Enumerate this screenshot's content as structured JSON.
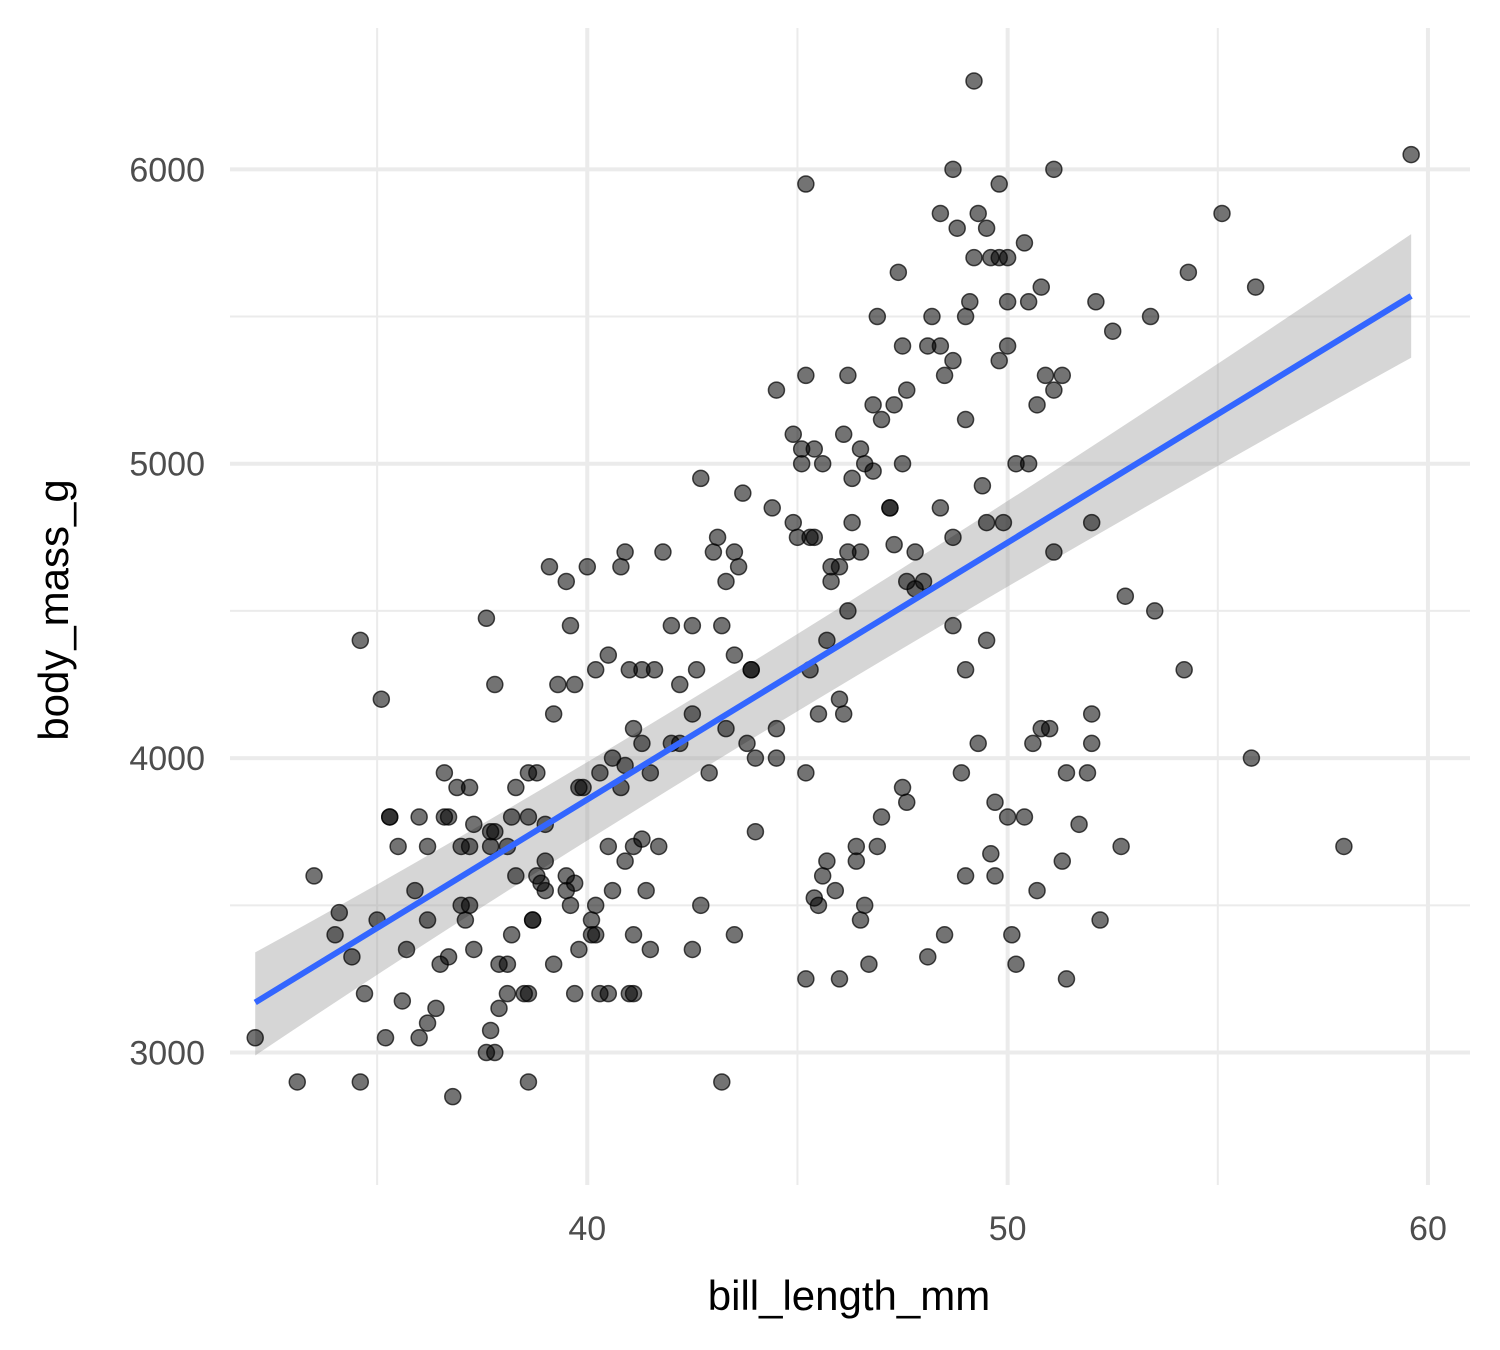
{
  "chart_data": {
    "type": "scatter",
    "xlabel": "bill_length_mm",
    "ylabel": "body_mass_g",
    "xlim": [
      31.5,
      61.0
    ],
    "ylim": [
      2550,
      6480
    ],
    "x_ticks": [
      40,
      50,
      60
    ],
    "y_ticks": [
      3000,
      4000,
      5000,
      6000
    ],
    "x_minor": [
      35,
      45,
      55
    ],
    "y_minor": [
      3500,
      4500,
      5500
    ],
    "grid": true,
    "point_color": "#000000",
    "point_opacity": 0.55,
    "trend_line": {
      "method": "lm",
      "color": "#3366ff",
      "ribbon_color": "#999999",
      "start": [
        32.1,
        3170
      ],
      "end": [
        59.6,
        5570
      ],
      "ci_start": [
        2990,
        3340
      ],
      "ci_mid_x": 44.0,
      "ci_mid": [
        4130,
        4270
      ],
      "ci_end": [
        5360,
        5780
      ]
    },
    "points": [
      [
        32.1,
        3050
      ],
      [
        33.1,
        2900
      ],
      [
        33.5,
        3600
      ],
      [
        34.0,
        3400
      ],
      [
        34.1,
        3475
      ],
      [
        34.4,
        3325
      ],
      [
        34.6,
        2900
      ],
      [
        34.6,
        4400
      ],
      [
        34.7,
        3200
      ],
      [
        35.0,
        3450
      ],
      [
        35.1,
        4200
      ],
      [
        35.2,
        3050
      ],
      [
        35.3,
        3800
      ],
      [
        35.5,
        3700
      ],
      [
        35.6,
        3175
      ],
      [
        35.7,
        3350
      ],
      [
        35.9,
        3550
      ],
      [
        36.0,
        3050
      ],
      [
        36.2,
        3100
      ],
      [
        36.2,
        3700
      ],
      [
        36.2,
        3450
      ],
      [
        36.4,
        3150
      ],
      [
        36.5,
        3300
      ],
      [
        36.6,
        3800
      ],
      [
        36.7,
        3325
      ],
      [
        36.8,
        2850
      ],
      [
        37.0,
        3500
      ],
      [
        37.0,
        3700
      ],
      [
        37.1,
        3450
      ],
      [
        37.2,
        3500
      ],
      [
        37.3,
        3350
      ],
      [
        37.6,
        3000
      ],
      [
        37.7,
        3700
      ],
      [
        37.8,
        3750
      ],
      [
        37.8,
        3000
      ],
      [
        37.9,
        3150
      ],
      [
        38.1,
        3300
      ],
      [
        38.1,
        3700
      ],
      [
        38.2,
        3400
      ],
      [
        38.3,
        3600
      ],
      [
        38.5,
        3200
      ],
      [
        38.6,
        3200
      ],
      [
        38.6,
        2900
      ],
      [
        38.7,
        3450
      ],
      [
        38.8,
        3600
      ],
      [
        39.0,
        3550
      ],
      [
        39.2,
        3300
      ],
      [
        39.5,
        3550
      ],
      [
        39.7,
        3200
      ],
      [
        39.8,
        3350
      ],
      [
        40.1,
        3450
      ],
      [
        40.2,
        3400
      ],
      [
        40.3,
        3200
      ],
      [
        40.5,
        3200
      ],
      [
        40.9,
        3650
      ],
      [
        41.1,
        3400
      ],
      [
        41.1,
        3200
      ],
      [
        41.4,
        3550
      ],
      [
        41.5,
        3350
      ],
      [
        42.5,
        3350
      ],
      [
        42.7,
        3500
      ],
      [
        43.2,
        2900
      ],
      [
        43.5,
        3400
      ],
      [
        44.0,
        3750
      ],
      [
        36.6,
        3950
      ],
      [
        37.2,
        3900
      ],
      [
        37.6,
        4475
      ],
      [
        37.8,
        4250
      ],
      [
        38.2,
        3800
      ],
      [
        38.6,
        3950
      ],
      [
        38.8,
        3950
      ],
      [
        39.1,
        4650
      ],
      [
        39.2,
        4150
      ],
      [
        39.3,
        4250
      ],
      [
        39.5,
        4600
      ],
      [
        39.6,
        4450
      ],
      [
        39.7,
        4250
      ],
      [
        40.0,
        4650
      ],
      [
        40.2,
        4300
      ],
      [
        40.5,
        4350
      ],
      [
        40.8,
        4650
      ],
      [
        40.9,
        4700
      ],
      [
        41.0,
        4300
      ],
      [
        41.1,
        4100
      ],
      [
        41.3,
        4300
      ],
      [
        41.6,
        4300
      ],
      [
        41.8,
        4700
      ],
      [
        42.0,
        4450
      ],
      [
        42.5,
        4450
      ],
      [
        42.7,
        4950
      ],
      [
        43.0,
        4700
      ],
      [
        43.1,
        4750
      ],
      [
        43.2,
        4450
      ],
      [
        43.3,
        4600
      ],
      [
        43.5,
        4700
      ],
      [
        43.6,
        4650
      ],
      [
        43.5,
        4350
      ],
      [
        43.7,
        4900
      ],
      [
        43.9,
        4300
      ],
      [
        44.4,
        4850
      ],
      [
        44.9,
        5100
      ],
      [
        45.1,
        5050
      ],
      [
        45.2,
        5300
      ],
      [
        45.2,
        5950
      ],
      [
        45.4,
        4750
      ],
      [
        45.6,
        5000
      ],
      [
        45.8,
        4650
      ],
      [
        46.1,
        5100
      ],
      [
        46.2,
        5300
      ],
      [
        46.3,
        4800
      ],
      [
        46.5,
        5050
      ],
      [
        46.8,
        5200
      ],
      [
        46.9,
        5500
      ],
      [
        47.2,
        4850
      ],
      [
        47.5,
        5000
      ],
      [
        47.6,
        5250
      ],
      [
        47.8,
        4700
      ],
      [
        48.1,
        5400
      ],
      [
        48.2,
        5500
      ],
      [
        48.4,
        5850
      ],
      [
        48.5,
        5300
      ],
      [
        48.7,
        5350
      ],
      [
        49.1,
        5550
      ],
      [
        49.3,
        5850
      ],
      [
        49.5,
        5800
      ],
      [
        49.8,
        5950
      ],
      [
        49.8,
        5700
      ],
      [
        50.0,
        5400
      ],
      [
        50.4,
        5750
      ],
      [
        50.5,
        5550
      ],
      [
        50.8,
        5600
      ],
      [
        51.1,
        5250
      ],
      [
        51.3,
        5300
      ],
      [
        52.1,
        5550
      ],
      [
        52.5,
        5450
      ],
      [
        53.4,
        5500
      ],
      [
        54.3,
        5650
      ],
      [
        55.1,
        5850
      ],
      [
        55.9,
        5600
      ],
      [
        59.6,
        6050
      ],
      [
        49.2,
        6300
      ],
      [
        48.7,
        6000
      ],
      [
        51.1,
        6000
      ],
      [
        50.2,
        5000
      ],
      [
        48.7,
        4450
      ],
      [
        49.5,
        4400
      ],
      [
        49.0,
        4300
      ],
      [
        47.6,
        4600
      ],
      [
        46.2,
        4500
      ],
      [
        45.7,
        4400
      ],
      [
        45.3,
        4300
      ],
      [
        46.0,
        4200
      ],
      [
        45.5,
        4150
      ],
      [
        46.1,
        4150
      ],
      [
        44.5,
        4100
      ],
      [
        43.3,
        4100
      ],
      [
        42.9,
        3950
      ],
      [
        42.5,
        4150
      ],
      [
        42.2,
        4050
      ],
      [
        41.5,
        3950
      ],
      [
        40.8,
        3900
      ],
      [
        40.3,
        3950
      ],
      [
        39.9,
        3900
      ],
      [
        40.6,
        4000
      ],
      [
        41.3,
        4050
      ],
      [
        42.0,
        4050
      ],
      [
        42.6,
        4300
      ],
      [
        43.9,
        4300
      ],
      [
        49.7,
        3850
      ],
      [
        50.0,
        3800
      ],
      [
        50.4,
        3800
      ],
      [
        50.6,
        4050
      ],
      [
        50.8,
        4100
      ],
      [
        51.0,
        4100
      ],
      [
        51.4,
        3950
      ],
      [
        52.0,
        4150
      ],
      [
        52.0,
        4050
      ],
      [
        52.2,
        3450
      ],
      [
        52.7,
        3700
      ],
      [
        51.7,
        3775
      ],
      [
        51.3,
        3650
      ],
      [
        51.4,
        3250
      ],
      [
        50.2,
        3300
      ],
      [
        50.1,
        3400
      ],
      [
        49.7,
        3600
      ],
      [
        49.6,
        3675
      ],
      [
        48.9,
        3950
      ],
      [
        48.5,
        3400
      ],
      [
        48.1,
        3325
      ],
      [
        47.6,
        3850
      ],
      [
        47.5,
        3900
      ],
      [
        46.9,
        3700
      ],
      [
        46.7,
        3300
      ],
      [
        46.5,
        3450
      ],
      [
        46.4,
        3700
      ],
      [
        46.0,
        3250
      ],
      [
        45.9,
        3550
      ],
      [
        45.7,
        3650
      ],
      [
        45.5,
        3500
      ],
      [
        45.2,
        3250
      ],
      [
        46.6,
        3500
      ],
      [
        47.0,
        3800
      ],
      [
        46.4,
        3650
      ],
      [
        45.6,
        3600
      ],
      [
        45.4,
        3525
      ],
      [
        44.5,
        4000
      ],
      [
        45.2,
        3950
      ],
      [
        49.3,
        4050
      ],
      [
        49.0,
        3600
      ],
      [
        50.7,
        3550
      ],
      [
        51.9,
        3950
      ],
      [
        53.5,
        4500
      ],
      [
        54.2,
        4300
      ],
      [
        52.8,
        4550
      ],
      [
        55.8,
        4000
      ],
      [
        58.0,
        3700
      ],
      [
        49.8,
        5350
      ],
      [
        50.0,
        5700
      ],
      [
        50.7,
        5200
      ],
      [
        50.9,
        5300
      ],
      [
        50.5,
        5000
      ],
      [
        49.4,
        4925
      ],
      [
        49.9,
        4800
      ],
      [
        48.4,
        4850
      ],
      [
        48.0,
        4600
      ],
      [
        47.3,
        4725
      ],
      [
        46.8,
        4975
      ],
      [
        46.5,
        4700
      ],
      [
        46.0,
        4650
      ],
      [
        45.3,
        4750
      ],
      [
        45.0,
        4750
      ],
      [
        44.9,
        4800
      ],
      [
        45.8,
        4600
      ],
      [
        46.2,
        4700
      ],
      [
        47.2,
        4850
      ],
      [
        47.8,
        4575
      ],
      [
        48.7,
        4750
      ],
      [
        49.5,
        4800
      ],
      [
        51.1,
        4700
      ],
      [
        52.0,
        4800
      ],
      [
        47.3,
        5200
      ],
      [
        47.5,
        5400
      ],
      [
        48.4,
        5400
      ],
      [
        49.0,
        5150
      ],
      [
        49.6,
        5700
      ],
      [
        49.0,
        5500
      ],
      [
        50.0,
        5550
      ],
      [
        49.2,
        5700
      ],
      [
        48.8,
        5800
      ],
      [
        47.4,
        5650
      ],
      [
        45.1,
        5000
      ],
      [
        44.5,
        5250
      ],
      [
        45.4,
        5050
      ],
      [
        46.3,
        4950
      ],
      [
        46.6,
        5000
      ],
      [
        47.0,
        5150
      ],
      [
        44.0,
        4000
      ],
      [
        43.8,
        4050
      ],
      [
        42.2,
        4250
      ],
      [
        41.7,
        3700
      ],
      [
        41.1,
        3700
      ],
      [
        40.5,
        3700
      ],
      [
        39.8,
        3900
      ],
      [
        39.5,
        3600
      ],
      [
        39.0,
        3650
      ],
      [
        38.6,
        3800
      ],
      [
        38.9,
        3575
      ],
      [
        39.7,
        3575
      ],
      [
        40.6,
        3550
      ],
      [
        41.3,
        3725
      ],
      [
        40.9,
        3975
      ],
      [
        39.0,
        3775
      ],
      [
        38.3,
        3900
      ],
      [
        37.7,
        3750
      ],
      [
        37.3,
        3775
      ],
      [
        36.9,
        3900
      ],
      [
        36.0,
        3800
      ],
      [
        35.3,
        3800
      ],
      [
        36.7,
        3800
      ],
      [
        37.2,
        3700
      ],
      [
        38.7,
        3450
      ],
      [
        39.6,
        3500
      ],
      [
        40.2,
        3500
      ],
      [
        41.0,
        3200
      ],
      [
        40.1,
        3400
      ],
      [
        38.1,
        3200
      ],
      [
        37.7,
        3075
      ],
      [
        37.9,
        3300
      ]
    ]
  }
}
